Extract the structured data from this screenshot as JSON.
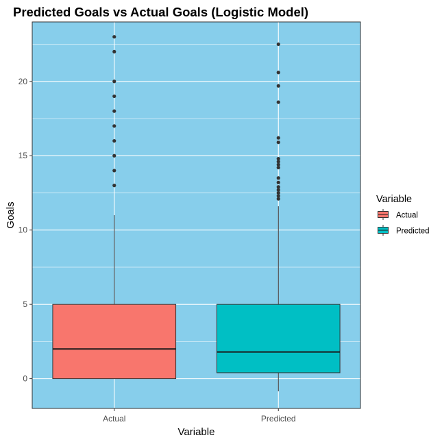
{
  "chart_data": {
    "type": "box",
    "title": "Predicted Goals vs Actual Goals (Logistic Model)",
    "xlabel": "Variable",
    "ylabel": "Goals",
    "categories": [
      "Actual",
      "Predicted"
    ],
    "ylim": [
      -2.0,
      24.0
    ],
    "yticks": [
      0,
      5,
      10,
      15,
      20
    ],
    "grid": true,
    "panel_background": "#87CEEB",
    "legend": {
      "title": "Variable",
      "position": "right",
      "entries": [
        "Actual",
        "Predicted"
      ]
    },
    "series": [
      {
        "name": "Actual",
        "color": "#F8766D",
        "whisker_low": 0,
        "q1": 0,
        "median": 2,
        "q3": 5,
        "whisker_high": 11,
        "outliers": [
          13,
          14,
          15,
          16,
          17,
          18,
          19,
          20,
          22,
          23
        ]
      },
      {
        "name": "Predicted",
        "color": "#00BFC4",
        "whisker_low": -0.85,
        "q1": 0.4,
        "median": 1.8,
        "q3": 5,
        "whisker_high": 11.6,
        "outliers": [
          12.1,
          12.3,
          12.5,
          12.7,
          12.9,
          13.2,
          13.5,
          14.2,
          14.4,
          14.6,
          14.8,
          15.9,
          16.2,
          18.6,
          19.7,
          20.6,
          22.5
        ]
      }
    ]
  }
}
